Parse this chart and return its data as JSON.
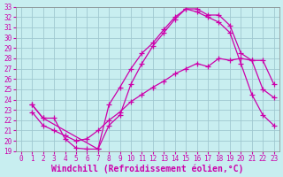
{
  "title": "",
  "xlabel": "Windchill (Refroidissement éolien,°C)",
  "ylabel": "",
  "bg_color": "#c8eef0",
  "grid_color": "#a0c8d0",
  "line_color": "#cc00aa",
  "xlim": [
    -0.5,
    23.5
  ],
  "ylim": [
    19,
    33
  ],
  "xticks": [
    0,
    1,
    2,
    3,
    4,
    5,
    6,
    7,
    8,
    9,
    10,
    11,
    12,
    13,
    14,
    15,
    16,
    17,
    18,
    19,
    20,
    21,
    22,
    23
  ],
  "yticks": [
    19,
    20,
    21,
    22,
    23,
    24,
    25,
    26,
    27,
    28,
    29,
    30,
    31,
    32,
    33
  ],
  "line1_x": [
    1,
    2,
    3,
    4,
    5,
    6,
    7,
    8,
    9,
    10,
    11,
    12,
    13,
    14,
    15,
    16,
    17,
    18,
    19,
    20,
    21,
    22,
    23
  ],
  "line1_y": [
    23.5,
    22.2,
    22.2,
    20.2,
    19.3,
    19.2,
    19.2,
    21.5,
    22.5,
    25.5,
    27.5,
    29.2,
    30.5,
    31.8,
    32.8,
    32.5,
    32.0,
    31.5,
    30.5,
    27.5,
    24.5,
    22.5,
    21.5
  ],
  "line2_x": [
    1,
    2,
    7,
    8,
    9,
    10,
    11,
    12,
    13,
    14,
    15,
    16,
    17,
    18,
    19,
    20,
    21,
    22,
    23
  ],
  "line2_y": [
    23.5,
    22.2,
    19.2,
    23.5,
    25.2,
    27.0,
    28.5,
    29.5,
    30.8,
    32.0,
    32.8,
    32.8,
    32.2,
    32.2,
    31.2,
    28.5,
    27.8,
    27.8,
    25.5
  ],
  "line3_x": [
    1,
    2,
    3,
    4,
    5,
    6,
    7,
    8,
    9,
    10,
    11,
    12,
    13,
    14,
    15,
    16,
    17,
    18,
    19,
    20,
    21,
    22,
    23
  ],
  "line3_y": [
    22.8,
    21.5,
    21.0,
    20.5,
    20.0,
    20.2,
    21.0,
    22.0,
    22.8,
    23.8,
    24.5,
    25.2,
    25.8,
    26.5,
    27.0,
    27.5,
    27.2,
    28.0,
    27.8,
    28.0,
    27.8,
    25.0,
    24.2
  ],
  "xlabel_fontsize": 7,
  "tick_fontsize": 5.5,
  "marker": "+"
}
